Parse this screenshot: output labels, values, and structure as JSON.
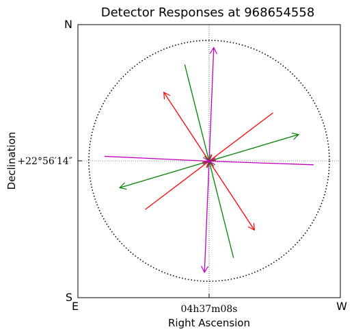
{
  "chart_data": {
    "type": "vector",
    "title": "Detector Responses at 968654558",
    "xlabel": "Right Ascension",
    "ylabel": "Declination",
    "xtick_label": "04h37m08s",
    "ytick_label": "+22°56′14″",
    "corner_labels": {
      "top_left": "N",
      "bottom_left": "S",
      "bottom_left_x": "E",
      "bottom_right": "W"
    },
    "xlim": [
      -1.13,
      1.13
    ],
    "ylim": [
      -1.13,
      1.13
    ],
    "circle_radius": 1.0,
    "origin": [
      0,
      0
    ],
    "series": [
      {
        "color": "#ff0000",
        "vectors": [
          {
            "tail": [
              0.55,
              0.4
            ],
            "head": [
              0.0,
              0.0
            ]
          },
          {
            "tail": [
              -0.55,
              -0.4
            ],
            "head": [
              0.0,
              0.0
            ]
          },
          {
            "tail": [
              0.0,
              0.0
            ],
            "head": [
              -0.39,
              0.57
            ]
          },
          {
            "tail": [
              0.0,
              0.0
            ],
            "head": [
              0.39,
              -0.57
            ]
          }
        ]
      },
      {
        "color": "#008000",
        "vectors": [
          {
            "tail": [
              -0.21,
              0.8
            ],
            "head": [
              0.0,
              0.0
            ]
          },
          {
            "tail": [
              0.21,
              -0.8
            ],
            "head": [
              0.0,
              0.0
            ]
          },
          {
            "tail": [
              0.0,
              0.0
            ],
            "head": [
              0.77,
              0.22
            ]
          },
          {
            "tail": [
              0.0,
              0.0
            ],
            "head": [
              -0.77,
              -0.22
            ]
          }
        ]
      },
      {
        "color": "#c000c0",
        "vectors": [
          {
            "tail": [
              -0.9,
              0.04
            ],
            "head": [
              0.0,
              0.0
            ]
          },
          {
            "tail": [
              0.9,
              -0.03
            ],
            "head": [
              0.0,
              0.0
            ]
          },
          {
            "tail": [
              0.0,
              0.0
            ],
            "head": [
              0.04,
              0.94
            ]
          },
          {
            "tail": [
              0.0,
              0.0
            ],
            "head": [
              -0.04,
              -0.92
            ]
          }
        ]
      }
    ]
  }
}
